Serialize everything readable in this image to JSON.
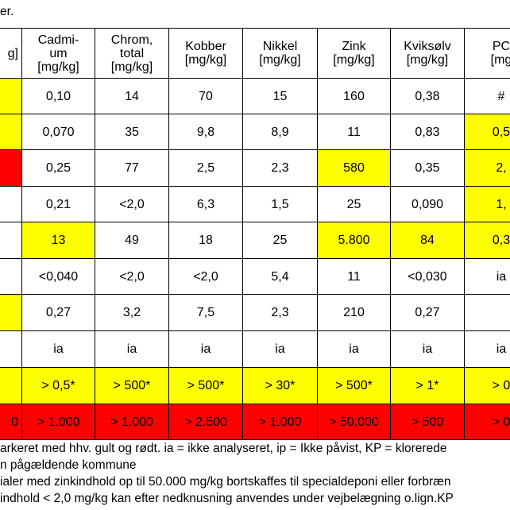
{
  "intro_fragment": "er.",
  "table": {
    "header": [
      {
        "lines": [
          "g]"
        ]
      },
      {
        "lines": [
          "Cadmi-",
          "um",
          "[mg/kg]"
        ]
      },
      {
        "lines": [
          "Chrom,",
          "total",
          "[mg/kg]"
        ]
      },
      {
        "lines": [
          "Kobber",
          "[mg/kg]"
        ]
      },
      {
        "lines": [
          "Nikkel",
          "[mg/kg]"
        ]
      },
      {
        "lines": [
          "Zink",
          "[mg/kg]"
        ]
      },
      {
        "lines": [
          "Kviksølv",
          "[mg/kg]"
        ]
      },
      {
        "lines": [
          "PC",
          "[mg"
        ]
      }
    ],
    "rows": [
      [
        {
          "fill": "yellow"
        },
        {
          "text": "0,10",
          "fill": "white"
        },
        {
          "text": "14",
          "fill": "white"
        },
        {
          "text": "70",
          "fill": "white"
        },
        {
          "text": "15",
          "fill": "white"
        },
        {
          "text": "160",
          "fill": "white"
        },
        {
          "text": "0,38",
          "fill": "white"
        },
        {
          "text": "#",
          "fill": "white"
        }
      ],
      [
        {
          "fill": "yellow"
        },
        {
          "text": "0,070",
          "fill": "white"
        },
        {
          "text": "35",
          "fill": "white"
        },
        {
          "text": "9,8",
          "fill": "white"
        },
        {
          "text": "8,9",
          "fill": "white"
        },
        {
          "text": "11",
          "fill": "white"
        },
        {
          "text": "0,83",
          "fill": "white"
        },
        {
          "text": "0,5",
          "fill": "yellow"
        }
      ],
      [
        {
          "fill": "red"
        },
        {
          "text": "0,25",
          "fill": "white"
        },
        {
          "text": "77",
          "fill": "white"
        },
        {
          "text": "2,5",
          "fill": "white"
        },
        {
          "text": "2,3",
          "fill": "white"
        },
        {
          "text": "580",
          "fill": "yellow"
        },
        {
          "text": "0,35",
          "fill": "white"
        },
        {
          "text": "2,",
          "fill": "yellow"
        }
      ],
      [
        {
          "fill": "white"
        },
        {
          "text": "0,21",
          "fill": "white"
        },
        {
          "text": "<2,0",
          "fill": "white"
        },
        {
          "text": "6,3",
          "fill": "white"
        },
        {
          "text": "1,5",
          "fill": "white"
        },
        {
          "text": "25",
          "fill": "white"
        },
        {
          "text": "0,090",
          "fill": "white"
        },
        {
          "text": "1,",
          "fill": "yellow"
        }
      ],
      [
        {
          "fill": "white"
        },
        {
          "text": "13",
          "fill": "yellow"
        },
        {
          "text": "49",
          "fill": "white"
        },
        {
          "text": "18",
          "fill": "white"
        },
        {
          "text": "25",
          "fill": "white"
        },
        {
          "text": "5.800",
          "fill": "yellow"
        },
        {
          "text": "84",
          "fill": "yellow"
        },
        {
          "text": "0,3",
          "fill": "yellow"
        }
      ],
      [
        {
          "fill": "white"
        },
        {
          "text": "<0,040",
          "fill": "white"
        },
        {
          "text": "<2,0",
          "fill": "white"
        },
        {
          "text": "<2,0",
          "fill": "white"
        },
        {
          "text": "5,4",
          "fill": "white"
        },
        {
          "text": "11",
          "fill": "white"
        },
        {
          "text": "<0,030",
          "fill": "white"
        },
        {
          "text": "ia",
          "fill": "white"
        }
      ],
      [
        {
          "fill": "yellow"
        },
        {
          "text": "0,27",
          "fill": "white"
        },
        {
          "text": "3,2",
          "fill": "white"
        },
        {
          "text": "7,5",
          "fill": "white"
        },
        {
          "text": "2,3",
          "fill": "white"
        },
        {
          "text": "210",
          "fill": "white"
        },
        {
          "text": "0,27",
          "fill": "white"
        },
        {
          "fill": "white"
        }
      ],
      [
        {
          "fill": "white"
        },
        {
          "text": "ia",
          "fill": "white"
        },
        {
          "text": "ia",
          "fill": "white"
        },
        {
          "text": "ia",
          "fill": "white"
        },
        {
          "text": "ia",
          "fill": "white"
        },
        {
          "text": "ia",
          "fill": "white"
        },
        {
          "text": "ia",
          "fill": "white"
        },
        {
          "text": "ia",
          "fill": "white"
        }
      ],
      [
        {
          "fill": "yellow"
        },
        {
          "text": "> 0,5*",
          "fill": "yellow"
        },
        {
          "text": "> 500*",
          "fill": "yellow"
        },
        {
          "text": "> 500*",
          "fill": "yellow"
        },
        {
          "text": "> 30*",
          "fill": "yellow"
        },
        {
          "text": "> 500*",
          "fill": "yellow"
        },
        {
          "text": "> 1*",
          "fill": "yellow"
        },
        {
          "text": "> 0",
          "fill": "yellow"
        }
      ],
      [
        {
          "text": "0",
          "fill": "red"
        },
        {
          "text": "> 1.000",
          "fill": "red"
        },
        {
          "text": "> 1.000",
          "fill": "red"
        },
        {
          "text": "> 2.500",
          "fill": "red"
        },
        {
          "text": "> 1.000",
          "fill": "red"
        },
        {
          "text": "> 50.000",
          "fill": "red"
        },
        {
          "text": "> 500",
          "fill": "red"
        },
        {
          "text": "> 0",
          "fill": "red"
        }
      ]
    ]
  },
  "footnotes": [
    "arkeret med hhv. gult og rødt. ia = ikke analyseret, ip = Ikke påvist, KP = klorerede",
    "n pågældende kommune",
    "ialer med zinkindhold op til 50.000 mg/kg bortskaffes til specialdeponi eller forbræn",
    "indhold < 2,0 mg/kg kan efter nedknusning anvendes under vejbelægning o.lign.KP"
  ]
}
